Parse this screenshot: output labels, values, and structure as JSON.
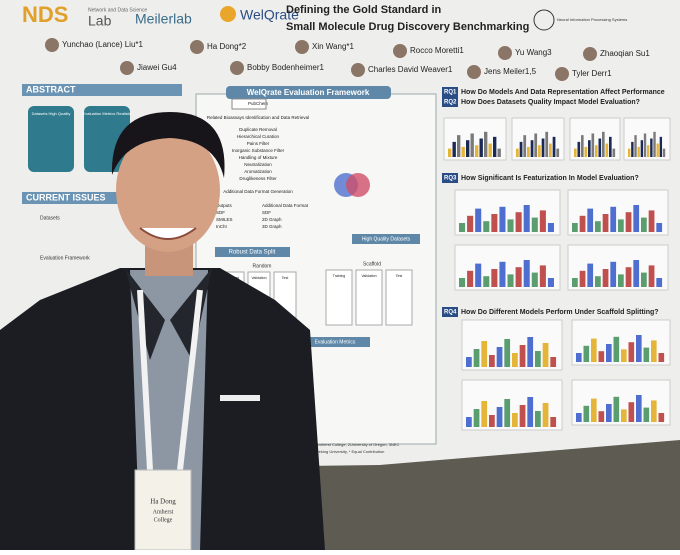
{
  "header": {
    "logos": [
      "NDS",
      "Network and Data Science",
      "Lab",
      "Meilerlab",
      "WelQrate",
      "Neural Information Processing Systems"
    ],
    "title": [
      "Defining the Gold Standard in",
      "Small Molecule Drug Discovery Benchmarking"
    ]
  },
  "authors": [
    "Yunchao (Lance) Liu*1",
    "Ha Dong*2",
    "Xin Wang*1",
    "Rocco Moretti1",
    "Yu Wang3",
    "Zhaoqian Su1",
    "Jiawei Gu4",
    "Bobby Bodenheimer1",
    "Charles David Weaver1",
    "Jens Meiler1,5",
    "Tyler Derr1"
  ],
  "abstract": {
    "heading": "ABSTRACT",
    "cards": [
      "Datasets High Quality",
      "Evaluation Metrics Realistic"
    ]
  },
  "current_issues": {
    "heading": "CURRENT ISSUES",
    "items": [
      "Datasets",
      "Evaluation Framework"
    ]
  },
  "framework": {
    "heading": "WelQrate Evaluation Framework",
    "steps": [
      "PubChem",
      "Related Bioassays Identification and Data Retrieval",
      "Duplicate Removal",
      "Hierarchical Curation",
      "Pains Filter",
      "Inorganic Substance Filter",
      "Handling of Mixture",
      "Neutralization",
      "Aromatization",
      "Druglikeness Filter",
      "Additional Data Format Generation"
    ],
    "outputs": [
      "Outputs",
      "SDF",
      "SMILES",
      "InChI"
    ],
    "formats": [
      "Additional Data Format",
      "SDF",
      "2D Graph",
      "3D Graph"
    ],
    "high_quality": "High Quality Datasets",
    "split": {
      "heading": "Robust Data Split",
      "kinds": [
        "Random",
        "Scaffold"
      ],
      "parts": [
        "Training",
        "Validation",
        "Test"
      ]
    },
    "metrics": "Evaluation Metrics"
  },
  "questions": [
    {
      "id": "RQ1",
      "text": "How Do Models And Data Representation Affect Performance"
    },
    {
      "id": "RQ2",
      "text": "How Does Datasets Quality Impact Model Evaluation?"
    },
    {
      "id": "RQ3",
      "text": "How Significant Is Featurization In Model Evaluation?"
    },
    {
      "id": "RQ4",
      "text": "How Do Different Models Perform Under Scaffold Splitting?"
    }
  ],
  "footnote": [
    "Amherst College, 2University of Oregon, 3NEC",
    "Peking University, * Equal Contribution"
  ],
  "badge": [
    "Ha Dong",
    "Amherst",
    "College"
  ]
}
